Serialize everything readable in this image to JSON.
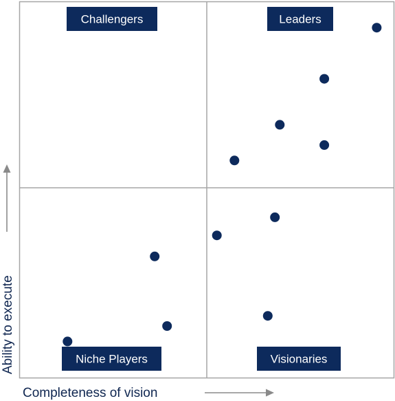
{
  "colors": {
    "navy": "#0d2a5c",
    "grid": "#a6a6a6",
    "arrow": "#8a8a8a",
    "axis_text": "#0f2650"
  },
  "chart_data": {
    "type": "scatter",
    "title": "",
    "xlabel": "Completeness of vision",
    "ylabel": "Ability to execute",
    "xlim": [
      0,
      100
    ],
    "ylim": [
      0,
      100
    ],
    "grid": "quadrants",
    "quadrants": {
      "top_left": "Challengers",
      "top_right": "Leaders",
      "bottom_left": "Niche Players",
      "bottom_right": "Visionaries"
    },
    "points": [
      {
        "x": 95.4,
        "y": 93.1
      },
      {
        "x": 81.4,
        "y": 79.5
      },
      {
        "x": 69.5,
        "y": 67.3
      },
      {
        "x": 81.4,
        "y": 61.9
      },
      {
        "x": 57.4,
        "y": 57.8
      },
      {
        "x": 68.2,
        "y": 42.7
      },
      {
        "x": 52.7,
        "y": 37.9
      },
      {
        "x": 36.1,
        "y": 32.3
      },
      {
        "x": 66.3,
        "y": 16.5
      },
      {
        "x": 39.4,
        "y": 13.8
      },
      {
        "x": 12.8,
        "y": 9.7
      }
    ]
  }
}
